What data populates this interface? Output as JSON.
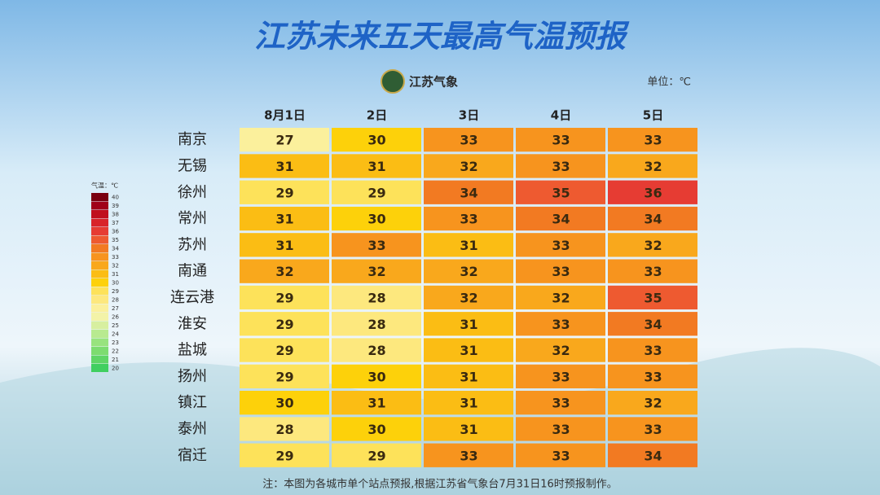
{
  "chart_data": {
    "type": "heatmap",
    "title": "江苏未来五天最高气温预报",
    "logo_text": "江苏气象",
    "unit_label": "单位：℃",
    "footnote": "注：本图为各城市单个站点预报,根据江苏省气象台7月31日16时预报制作。",
    "categories": [
      "8月1日",
      "2日",
      "3日",
      "4日",
      "5日"
    ],
    "rows": [
      "南京",
      "无锡",
      "徐州",
      "常州",
      "苏州",
      "南通",
      "连云港",
      "淮安",
      "盐城",
      "扬州",
      "镇江",
      "泰州",
      "宿迁"
    ],
    "values": [
      [
        27,
        30,
        33,
        33,
        33
      ],
      [
        31,
        31,
        32,
        33,
        32
      ],
      [
        29,
        29,
        34,
        35,
        36
      ],
      [
        31,
        30,
        33,
        34,
        34
      ],
      [
        31,
        33,
        31,
        33,
        32
      ],
      [
        32,
        32,
        32,
        33,
        33
      ],
      [
        29,
        28,
        32,
        32,
        35
      ],
      [
        29,
        28,
        31,
        33,
        34
      ],
      [
        29,
        28,
        31,
        32,
        33
      ],
      [
        29,
        30,
        31,
        33,
        33
      ],
      [
        30,
        31,
        31,
        33,
        32
      ],
      [
        28,
        30,
        31,
        33,
        33
      ],
      [
        29,
        29,
        33,
        33,
        34
      ]
    ],
    "legend": {
      "title": "气温：℃",
      "ticks": [
        40,
        39,
        38,
        37,
        36,
        35,
        34,
        33,
        32,
        31,
        30,
        29,
        28,
        27,
        26,
        25,
        24,
        23,
        22,
        21,
        20
      ],
      "colors": [
        "#7a0010",
        "#a00018",
        "#c0101e",
        "#d8242a",
        "#e63c33",
        "#ee5a30",
        "#f27a22",
        "#f7941e",
        "#f9a81c",
        "#fbbd14",
        "#fdd10a",
        "#fde25a",
        "#fde87e",
        "#fbf09c",
        "#f3f3a8",
        "#d7efa0",
        "#b8ea90",
        "#98e37e",
        "#7ddc70",
        "#5fd566",
        "#40cf60"
      ]
    }
  }
}
